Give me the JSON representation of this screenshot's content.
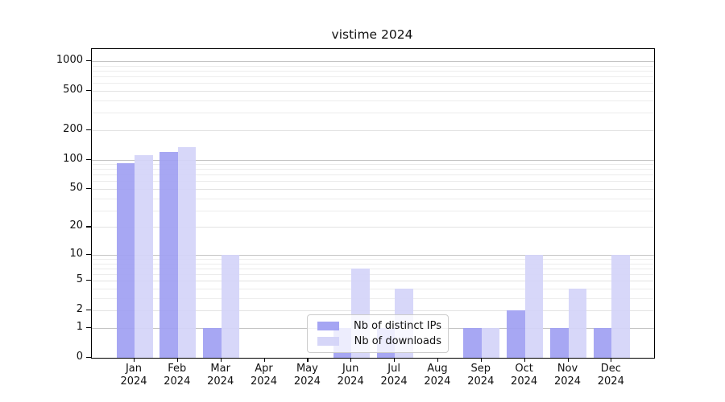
{
  "chart_data": {
    "type": "bar",
    "title": "vistime 2024",
    "categories": [
      "Jan",
      "Feb",
      "Mar",
      "Apr",
      "May",
      "Jun",
      "Jul",
      "Aug",
      "Sep",
      "Oct",
      "Nov",
      "Dec"
    ],
    "year_label": "2024",
    "series": [
      {
        "name": "Nb of distinct IPs",
        "color": "#a0a0f2",
        "values": [
          92,
          120,
          1,
          0,
          0,
          1,
          1,
          0,
          1,
          2,
          1,
          1
        ]
      },
      {
        "name": "Nb of downloads",
        "color": "#d4d4f8",
        "values": [
          110,
          135,
          10,
          0,
          0,
          7,
          4,
          0,
          1,
          10,
          4,
          10
        ]
      }
    ],
    "y_scale": "log10(1+v)",
    "y_ticks": [
      0,
      1,
      2,
      5,
      10,
      20,
      50,
      100,
      200,
      500,
      1000
    ],
    "y_gridlines_major": [
      1,
      10,
      100,
      1000
    ],
    "y_gridlines_mid": [
      2,
      5,
      20,
      50,
      200,
      500
    ],
    "y_gridlines_minor": [
      3,
      4,
      6,
      7,
      8,
      9,
      30,
      40,
      60,
      70,
      80,
      90,
      300,
      400,
      600,
      700,
      800,
      900
    ],
    "ylim": [
      0,
      1300
    ],
    "grid": true,
    "legend_position": "inside-bottom-center",
    "colors": {
      "grid_major": "#c4c4c4",
      "grid_minor": "#ececec",
      "axis": "#000000",
      "legend_border": "#cccccc"
    }
  }
}
